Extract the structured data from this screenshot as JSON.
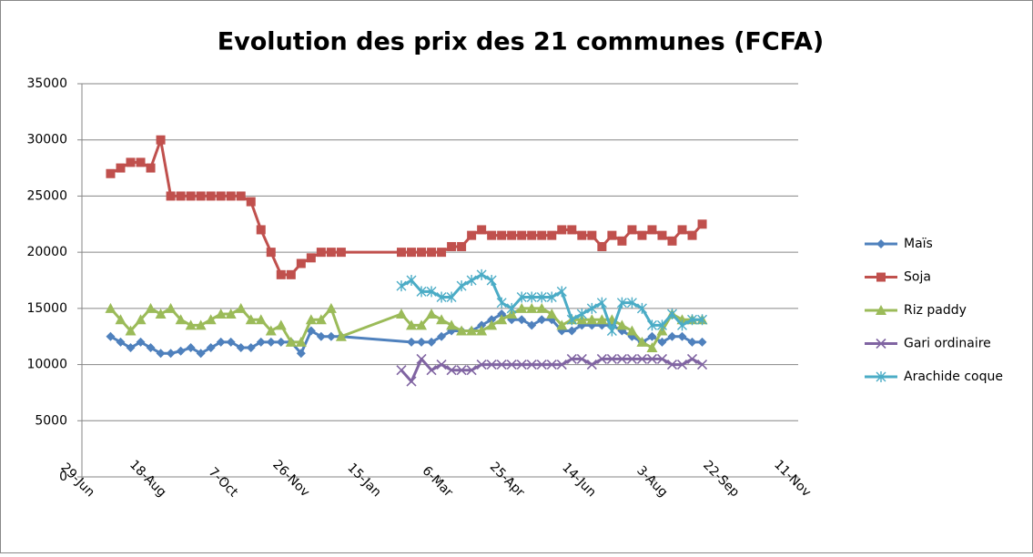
{
  "chart_data": {
    "type": "line",
    "title": "Evolution des prix des 21 communes (FCFA)",
    "ylim": [
      0,
      35000
    ],
    "yticks": [
      0,
      5000,
      10000,
      15000,
      20000,
      25000,
      30000,
      35000
    ],
    "xlim": [
      0,
      500
    ],
    "xticks": [
      {
        "value": 0,
        "label": "29-Jun"
      },
      {
        "value": 50,
        "label": "18-Aug"
      },
      {
        "value": 100,
        "label": "7-Oct"
      },
      {
        "value": 150,
        "label": "26-Nov"
      },
      {
        "value": 200,
        "label": "15-Jan"
      },
      {
        "value": 250,
        "label": "6-Mar"
      },
      {
        "value": 300,
        "label": "25-Apr"
      },
      {
        "value": 350,
        "label": "14-Jun"
      },
      {
        "value": 400,
        "label": "3-Aug"
      },
      {
        "value": 450,
        "label": "22-Sep"
      },
      {
        "value": 500,
        "label": "11-Nov"
      }
    ],
    "grid": true,
    "legend": "right",
    "series": [
      {
        "name": "Maïs",
        "color": "#4f81bd",
        "marker": "diamond",
        "x": [
          20,
          27,
          34,
          41,
          48,
          55,
          62,
          69,
          76,
          83,
          90,
          97,
          104,
          111,
          118,
          125,
          132,
          139,
          146,
          153,
          160,
          167,
          174,
          181,
          230,
          237,
          244,
          251,
          258,
          265,
          272,
          279,
          286,
          293,
          300,
          307,
          314,
          321,
          328,
          335,
          342,
          349,
          356,
          363,
          370,
          377,
          384,
          391,
          398,
          405,
          412,
          419,
          426,
          433
        ],
        "values": [
          12500,
          12000,
          11500,
          12000,
          11500,
          11000,
          11000,
          11200,
          11500,
          11000,
          11500,
          12000,
          12000,
          11500,
          11500,
          12000,
          12000,
          12000,
          12000,
          11000,
          13000,
          12500,
          12500,
          12500,
          12000,
          12000,
          12000,
          12500,
          13000,
          13000,
          13000,
          13500,
          14000,
          14500,
          14000,
          14000,
          13500,
          14000,
          14000,
          13000,
          13000,
          13500,
          13500,
          13500,
          13500,
          13000,
          12500,
          12000,
          12500,
          12000,
          12500,
          12500,
          12000,
          12000
        ]
      },
      {
        "name": "Soja",
        "color": "#c0504d",
        "marker": "square",
        "x": [
          20,
          27,
          34,
          41,
          48,
          55,
          62,
          69,
          76,
          83,
          90,
          97,
          104,
          111,
          118,
          125,
          132,
          139,
          146,
          153,
          160,
          167,
          174,
          181,
          223,
          230,
          237,
          244,
          251,
          258,
          265,
          272,
          279,
          286,
          293,
          300,
          307,
          314,
          321,
          328,
          335,
          342,
          349,
          356,
          363,
          370,
          377,
          384,
          391,
          398,
          405,
          412,
          419,
          426,
          433
        ],
        "values": [
          27000,
          27500,
          28000,
          28000,
          27500,
          30000,
          25000,
          25000,
          25000,
          25000,
          25000,
          25000,
          25000,
          25000,
          24500,
          22000,
          20000,
          18000,
          18000,
          19000,
          19500,
          20000,
          20000,
          20000,
          20000,
          20000,
          20000,
          20000,
          20000,
          20500,
          20500,
          21500,
          22000,
          21500,
          21500,
          21500,
          21500,
          21500,
          21500,
          21500,
          22000,
          22000,
          21500,
          21500,
          20500,
          21500,
          21000,
          22000,
          21500,
          22000,
          21500,
          21000,
          22000,
          21500,
          22500
        ]
      },
      {
        "name": "Riz paddy",
        "color": "#9bbb59",
        "marker": "triangle",
        "x": [
          20,
          27,
          34,
          41,
          48,
          55,
          62,
          69,
          76,
          83,
          90,
          97,
          104,
          111,
          118,
          125,
          132,
          139,
          146,
          153,
          160,
          167,
          174,
          181,
          223,
          230,
          237,
          244,
          251,
          258,
          265,
          272,
          279,
          286,
          293,
          300,
          307,
          314,
          321,
          328,
          335,
          342,
          349,
          356,
          363,
          370,
          377,
          384,
          391,
          398,
          405,
          412,
          419,
          426,
          433
        ],
        "values": [
          15000,
          14000,
          13000,
          14000,
          15000,
          14500,
          15000,
          14000,
          13500,
          13500,
          14000,
          14500,
          14500,
          15000,
          14000,
          14000,
          13000,
          13500,
          12000,
          12000,
          14000,
          14000,
          15000,
          12500,
          14500,
          13500,
          13500,
          14500,
          14000,
          13500,
          13000,
          13000,
          13000,
          13500,
          14000,
          14500,
          15000,
          15000,
          15000,
          14500,
          13500,
          14000,
          14000,
          14000,
          14000,
          14000,
          13500,
          13000,
          12000,
          11500,
          13000,
          14500,
          14000,
          14000,
          14000
        ]
      },
      {
        "name": "Gari ordinaire",
        "color": "#8064a2",
        "marker": "x",
        "x": [
          223,
          230,
          237,
          244,
          251,
          258,
          265,
          272,
          279,
          286,
          293,
          300,
          307,
          314,
          321,
          328,
          335,
          342,
          349,
          356,
          363,
          370,
          377,
          384,
          391,
          398,
          405,
          412,
          419,
          426,
          433
        ],
        "values": [
          9500,
          8500,
          10500,
          9500,
          10000,
          9500,
          9500,
          9500,
          10000,
          10000,
          10000,
          10000,
          10000,
          10000,
          10000,
          10000,
          10000,
          10500,
          10500,
          10000,
          10500,
          10500,
          10500,
          10500,
          10500,
          10500,
          10500,
          10000,
          10000,
          10500,
          10000
        ]
      },
      {
        "name": "Arachide coque",
        "color": "#4bacc6",
        "marker": "star",
        "x": [
          223,
          230,
          237,
          244,
          251,
          258,
          265,
          272,
          279,
          286,
          293,
          300,
          307,
          314,
          321,
          328,
          335,
          342,
          349,
          356,
          363,
          370,
          377,
          384,
          391,
          398,
          405,
          412,
          419,
          426,
          433
        ],
        "values": [
          17000,
          17500,
          16500,
          16500,
          16000,
          16000,
          17000,
          17500,
          18000,
          17500,
          15500,
          15000,
          16000,
          16000,
          16000,
          16000,
          16500,
          14000,
          14500,
          15000,
          15500,
          13000,
          15500,
          15500,
          15000,
          13500,
          13500,
          14500,
          13500,
          14000,
          14000
        ]
      }
    ]
  }
}
